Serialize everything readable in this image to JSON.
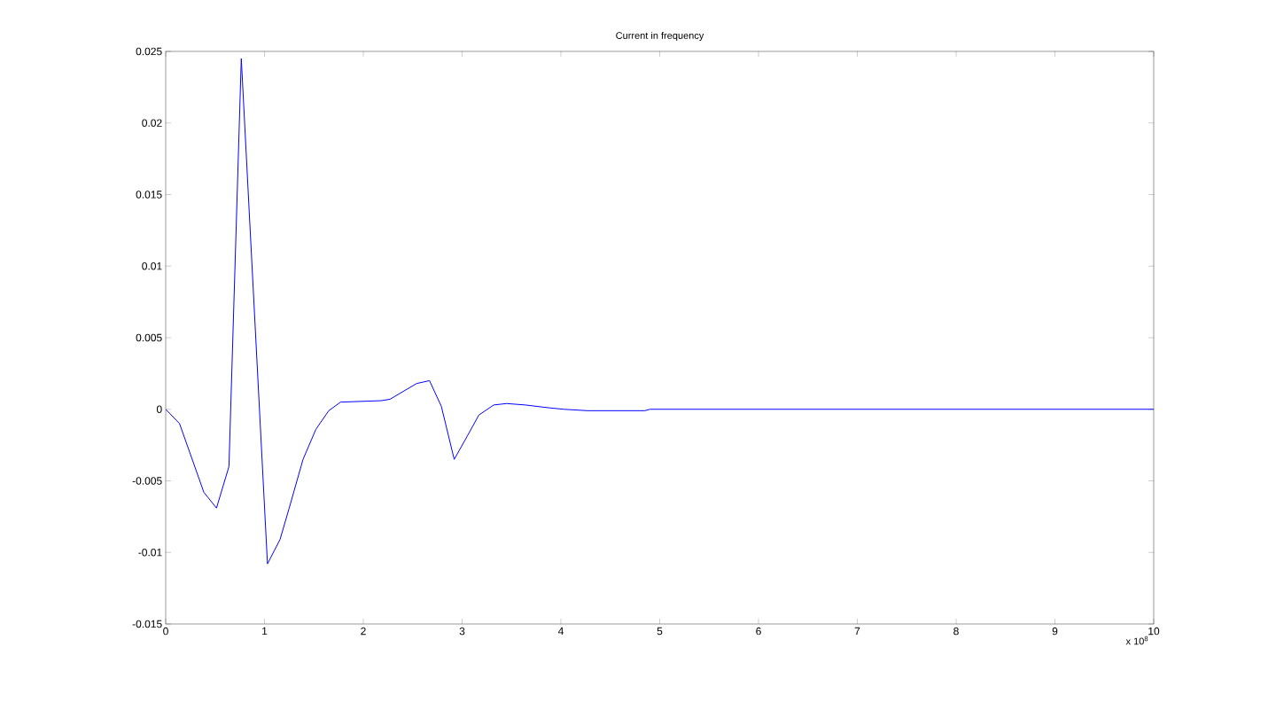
{
  "chart_data": {
    "type": "line",
    "title": "Current in frequency",
    "x": [
      0,
      0.14,
      0.386,
      0.514,
      0.64,
      0.765,
      1.03,
      1.157,
      1.25,
      1.39,
      1.52,
      1.65,
      1.77,
      2.18,
      2.27,
      2.54,
      2.67,
      2.79,
      2.92,
      3.05,
      3.17,
      3.32,
      3.45,
      3.64,
      3.88,
      4.03,
      4.27,
      4.5,
      4.85,
      4.9,
      10
    ],
    "values": [
      0,
      -0.001,
      -0.0058,
      -0.0069,
      -0.004,
      0.0245,
      -0.0108,
      -0.0091,
      -0.0069,
      -0.0035,
      -0.0014,
      -0.0001,
      0.0005,
      0.0006,
      0.0007,
      0.0018,
      0.002,
      0.0002,
      -0.0035,
      -0.0019,
      -0.0004,
      0.0003,
      0.0004,
      0.0003,
      0.0001,
      0,
      -0.0001,
      -0.0001,
      -0.0001,
      0,
      0
    ],
    "color": "#0000ff",
    "xlim": [
      0,
      10
    ],
    "xticks": [
      0,
      1,
      2,
      3,
      4,
      5,
      6,
      7,
      8,
      9,
      10
    ],
    "ylim": [
      -0.015,
      0.025
    ],
    "yticks": [
      -0.015,
      -0.01,
      -0.005,
      0,
      0.005,
      0.01,
      0.015,
      0.02,
      0.025
    ],
    "annotations": [
      "x 10$^{8}$"
    ]
  }
}
